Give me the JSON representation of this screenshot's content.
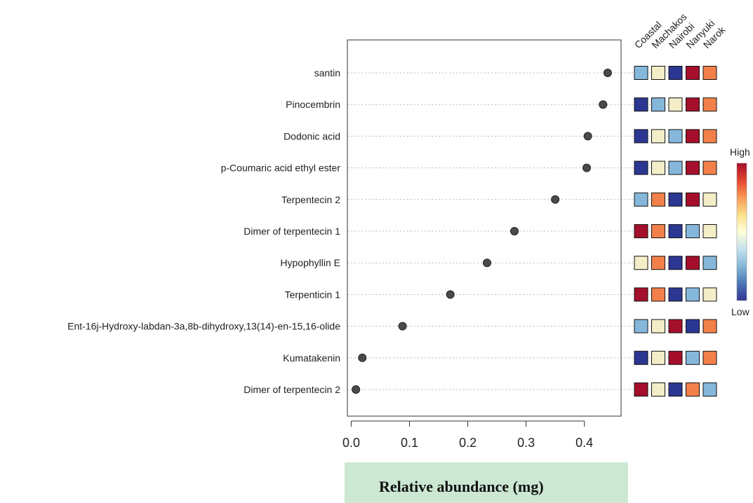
{
  "chart_data": {
    "type": "scatter",
    "xlabel": "Relative abundance (mg)",
    "xlim": [
      0,
      0.45
    ],
    "xticks": [
      "0.0",
      "0.1",
      "0.2",
      "0.3",
      "0.4"
    ],
    "xtick_values": [
      0,
      0.1,
      0.2,
      0.3,
      0.4
    ],
    "grid": "dotted horizontal",
    "categories": [
      "santin",
      "Pinocembrin",
      "Dodonic acid",
      "p-Coumaric acid ethyl ester",
      "Terpentecin 2",
      "Dimer of terpentecin 1",
      "Hypophyllin E",
      "Terpenticin 1",
      "Ent-16j-Hydroxy-labdan-3a,8b-dihydroxy,13(14)-en-15,16-olide",
      "Kumatakenin",
      "Dimer of terpentecin 2"
    ],
    "values": [
      0.44,
      0.432,
      0.406,
      0.404,
      0.35,
      0.28,
      0.233,
      0.17,
      0.088,
      0.019,
      0.008
    ],
    "heatmap": {
      "columns": [
        "Coastal",
        "Machakos",
        "Nairobi",
        "Nanyuki",
        "Narok"
      ],
      "levels": [
        [
          2,
          3,
          0,
          5,
          4
        ],
        [
          0,
          2,
          3,
          5,
          4
        ],
        [
          0,
          3,
          2,
          5,
          4
        ],
        [
          0,
          3,
          2,
          5,
          4
        ],
        [
          2,
          4,
          0,
          5,
          3
        ],
        [
          5,
          4,
          0,
          2,
          3
        ],
        [
          3,
          4,
          0,
          5,
          2
        ],
        [
          5,
          4,
          0,
          2,
          3
        ],
        [
          2,
          3,
          5,
          0,
          4
        ],
        [
          0,
          3,
          5,
          2,
          4
        ],
        [
          5,
          3,
          0,
          4,
          2
        ]
      ],
      "palette": [
        "#2C3793",
        "#4A73B5",
        "#85B7DA",
        "#F3EDC8",
        "#F2804A",
        "#A50F2B"
      ]
    },
    "legend": {
      "high_label": "High",
      "low_label": "Low",
      "gradient": [
        "#A50F2B",
        "#E3452F",
        "#F89A55",
        "#FCE08C",
        "#FFFFD9",
        "#C5E2EF",
        "#86B7D8",
        "#4A77B5",
        "#313695"
      ]
    },
    "colors": {
      "point": "#4A4A4A",
      "xlabel_background": "#CCE8D2"
    }
  }
}
